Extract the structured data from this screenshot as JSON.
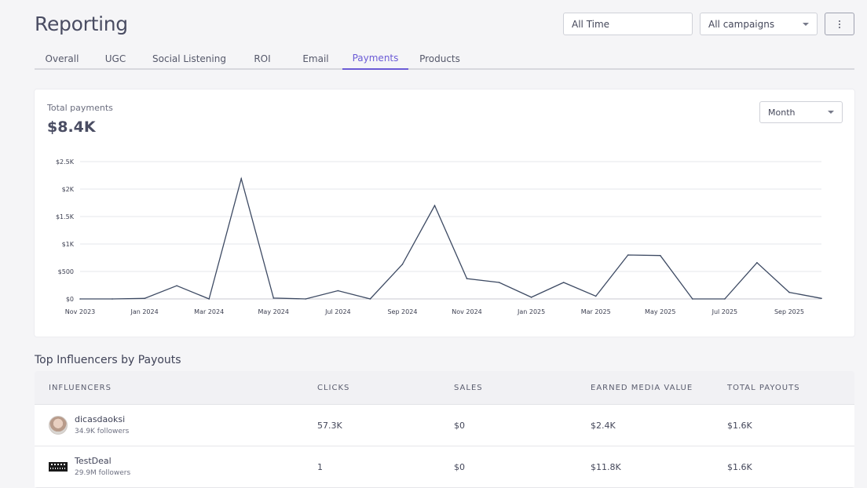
{
  "header": {
    "title": "Reporting",
    "time_filter": "All Time",
    "campaign_filter": "All campaigns",
    "more_icon": "vertical-dots-icon"
  },
  "tabs": [
    {
      "label": "Overall",
      "active": false
    },
    {
      "label": "UGC",
      "active": false
    },
    {
      "label": "Social Listening",
      "active": false
    },
    {
      "label": "ROI",
      "active": false
    },
    {
      "label": "Email",
      "active": false
    },
    {
      "label": "Payments",
      "active": true
    },
    {
      "label": "Products",
      "active": false
    }
  ],
  "accent_color": "#6b5bd6",
  "payments_card": {
    "label": "Total payments",
    "value": "$8.4K",
    "period": "Month"
  },
  "chart_data": {
    "type": "line",
    "x": [
      "Nov 2023",
      "Dec 2023",
      "Jan 2024",
      "Feb 2024",
      "Mar 2024",
      "Apr 2024",
      "May 2024",
      "Jun 2024",
      "Jul 2024",
      "Aug 2024",
      "Sep 2024",
      "Oct 2024",
      "Nov 2024",
      "Dec 2024",
      "Jan 2025",
      "Feb 2025",
      "Mar 2025",
      "Apr 2025",
      "May 2025",
      "Jun 2025",
      "Jul 2025",
      "Aug 2025",
      "Sep 2025",
      "Oct 2025"
    ],
    "series": [
      {
        "values": [
          0,
          0,
          10,
          240,
          0,
          2190,
          15,
          0,
          150,
          0,
          630,
          1700,
          370,
          300,
          30,
          300,
          50,
          800,
          790,
          0,
          0,
          660,
          120,
          10
        ],
        "color": "#3d4a63"
      }
    ],
    "x_tick_labels": [
      "Nov 2023",
      "Jan 2024",
      "Mar 2024",
      "May 2024",
      "Jul 2024",
      "Sep 2024",
      "Nov 2024",
      "Jan 2025",
      "Mar 2025",
      "May 2025",
      "Jul 2025",
      "Sep 2025"
    ],
    "y_ticks": [
      0,
      500,
      1000,
      1500,
      2000,
      2500
    ],
    "y_tick_labels": [
      "$0",
      "$500",
      "$1K",
      "$1.5K",
      "$2K",
      "$2.5K"
    ],
    "ylim": [
      0,
      2500
    ],
    "grid": true,
    "title": "",
    "xlabel": "",
    "ylabel": ""
  },
  "top_influencers": {
    "title": "Top Influencers by Payouts",
    "columns": [
      "INFLUENCERS",
      "CLICKS",
      "SALES",
      "EARNED MEDIA VALUE",
      "TOTAL PAYOUTS"
    ],
    "rows": [
      {
        "name": "dicasdaoksi",
        "followers": "34.9K followers",
        "clicks": "57.3K",
        "sales": "$0",
        "emv": "$2.4K",
        "payouts": "$1.6K",
        "avatar": "photo-avatar"
      },
      {
        "name": "TestDeal",
        "followers": "29.9M followers",
        "clicks": "1",
        "sales": "$0",
        "emv": "$11.8K",
        "payouts": "$1.6K",
        "avatar": "logo-avatar"
      }
    ]
  }
}
